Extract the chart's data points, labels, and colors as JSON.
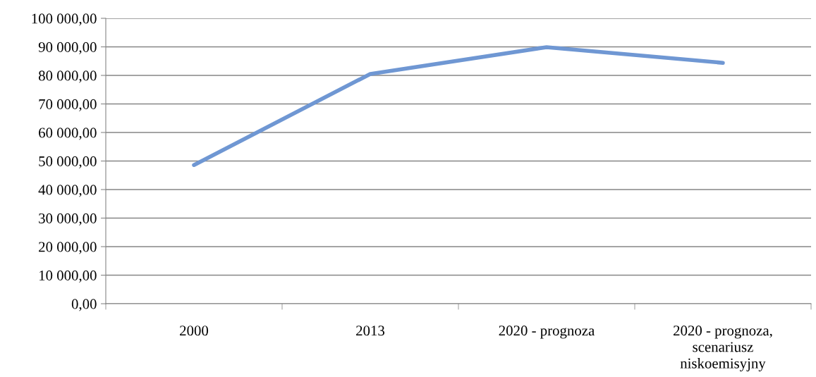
{
  "chart_data": {
    "type": "line",
    "categories": [
      "2000",
      "2013",
      "2020 - prognoza",
      "2020 - prognoza, scenariusz niskoemisyjny"
    ],
    "series": [
      {
        "color": "#6f97d3",
        "values": [
          48600,
          80500,
          89900,
          84400
        ]
      }
    ],
    "ylim": [
      0,
      100000
    ],
    "yticks": [
      {
        "value": 0,
        "label": "0,00"
      },
      {
        "value": 10000,
        "label": "10 000,00"
      },
      {
        "value": 20000,
        "label": "20 000,00"
      },
      {
        "value": 30000,
        "label": "30 000,00"
      },
      {
        "value": 40000,
        "label": "40 000,00"
      },
      {
        "value": 50000,
        "label": "50 000,00"
      },
      {
        "value": 60000,
        "label": "60 000,00"
      },
      {
        "value": 70000,
        "label": "70 000,00"
      },
      {
        "value": 80000,
        "label": "80 000,00"
      },
      {
        "value": 90000,
        "label": "90 000,00"
      },
      {
        "value": 100000,
        "label": "100 000,00"
      }
    ],
    "grid": "y",
    "legend": false,
    "marker": "none",
    "line_style": "solid"
  }
}
